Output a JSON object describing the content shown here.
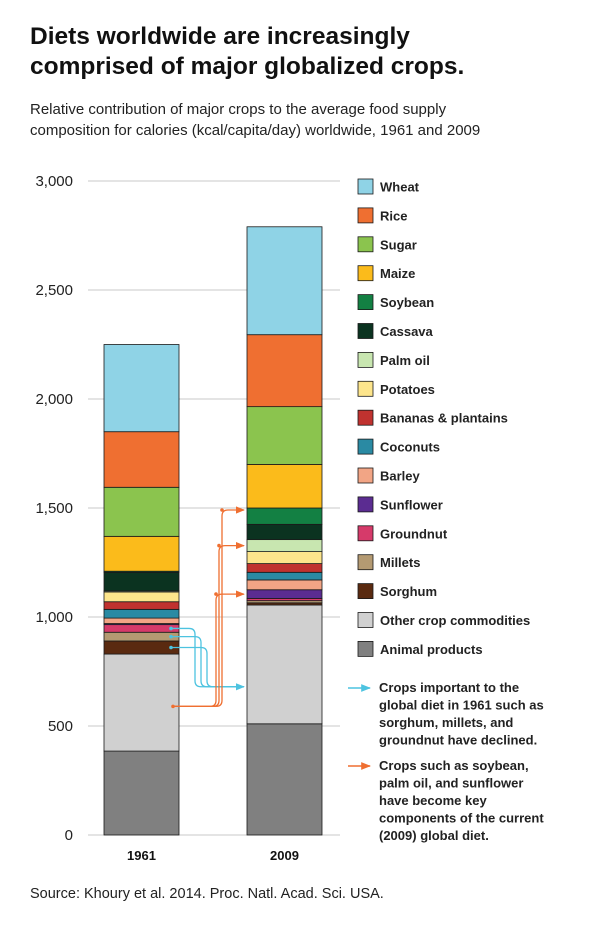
{
  "page": {
    "title_line1": "Diets worldwide are increasingly",
    "title_line2": "comprised of major globalized crops.",
    "subtitle_line1": "Relative contribution of major crops to the average food supply",
    "subtitle_line2": "composition for calories (kcal/capita/day) worldwide, 1961 and 2009",
    "source": "Source: Khoury et al. 2014. Proc. Natl. Acad. Sci. USA."
  },
  "chart_data": {
    "type": "bar",
    "stacked": true,
    "title": "Diets worldwide are increasingly comprised of major globalized crops.",
    "ylabel": "kcal/capita/day",
    "xlabel": "",
    "ylim": [
      0,
      3000
    ],
    "yticks": [
      0,
      500,
      1000,
      1500,
      2000,
      2500,
      3000
    ],
    "ytick_labels": [
      "0",
      "500",
      "1,000",
      "1,500",
      "2,000",
      "2,500",
      "3,000"
    ],
    "categories": [
      "1961",
      "2009"
    ],
    "series": [
      {
        "name": "Animal products",
        "color": "#808080",
        "values": [
          385,
          510
        ]
      },
      {
        "name": "Other crop commodities",
        "color": "#d0d0d0",
        "values": [
          445,
          545
        ]
      },
      {
        "name": "Sorghum",
        "color": "#5a2a10",
        "values": [
          60,
          10
        ]
      },
      {
        "name": "Millets",
        "color": "#b49a72",
        "values": [
          40,
          10
        ]
      },
      {
        "name": "Groundnut",
        "color": "#d63a6a",
        "values": [
          35,
          10
        ]
      },
      {
        "name": "Sunflower",
        "color": "#5b2c91",
        "values": [
          5,
          40
        ]
      },
      {
        "name": "Barley",
        "color": "#f2a585",
        "values": [
          25,
          45
        ]
      },
      {
        "name": "Coconuts",
        "color": "#2a8aa3",
        "values": [
          40,
          35
        ]
      },
      {
        "name": "Bananas & plantains",
        "color": "#c0322f",
        "values": [
          35,
          40
        ]
      },
      {
        "name": "Potatoes",
        "color": "#fde58c",
        "values": [
          45,
          55
        ]
      },
      {
        "name": "Palm oil",
        "color": "#c8e6b0",
        "values": [
          5,
          55
        ]
      },
      {
        "name": "Cassava",
        "color": "#0b3320",
        "values": [
          85,
          70
        ]
      },
      {
        "name": "Soybean",
        "color": "#138043",
        "values": [
          5,
          75
        ]
      },
      {
        "name": "Maize",
        "color": "#fbbb1b",
        "values": [
          160,
          200
        ]
      },
      {
        "name": "Sugar",
        "color": "#8bc44e",
        "values": [
          225,
          265
        ]
      },
      {
        "name": "Rice",
        "color": "#ef6f31",
        "values": [
          255,
          330
        ]
      },
      {
        "name": "Wheat",
        "color": "#8fd3e6",
        "values": [
          400,
          495
        ]
      }
    ],
    "legend_order": [
      "Wheat",
      "Rice",
      "Sugar",
      "Maize",
      "Soybean",
      "Cassava",
      "Palm oil",
      "Potatoes",
      "Bananas & plantains",
      "Coconuts",
      "Barley",
      "Sunflower",
      "Groundnut",
      "Millets",
      "Sorghum",
      "Other crop commodities",
      "Animal products"
    ],
    "annotations": [
      {
        "color": "#4dc3e0",
        "text_lines": [
          "Crops important to the",
          "global diet in 1961 such as",
          "sorghum, millets, and",
          "groundnut have declined."
        ],
        "from": {
          "category": "1961",
          "series": [
            "Groundnut",
            "Millets",
            "Sorghum"
          ]
        },
        "to": {
          "category": "2009",
          "value": 680
        }
      },
      {
        "color": "#ef6f31",
        "text_lines": [
          "Crops such as soybean,",
          "palm oil, and sunflower",
          "have become key",
          "components of the current",
          "(2009) global diet."
        ],
        "from": {
          "category": "1961",
          "value": 590
        },
        "to": {
          "category": "2009",
          "series": [
            "Soybean",
            "Palm oil",
            "Sunflower"
          ]
        }
      }
    ]
  }
}
